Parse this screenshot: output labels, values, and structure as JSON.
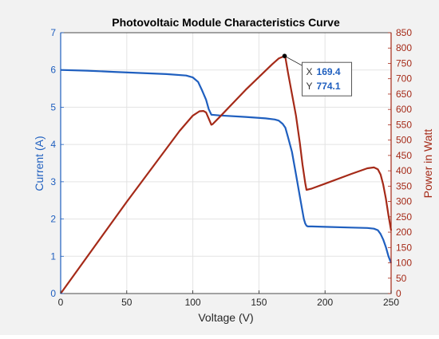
{
  "chart_data": {
    "type": "line",
    "title": "Photovoltaic Module Characteristics Curve",
    "xlabel": "Voltage (V)",
    "ylabel_left": "Current (A)",
    "ylabel_right": "Power in Watt",
    "xlim": [
      0,
      250
    ],
    "ylim_left": [
      0,
      7
    ],
    "ylim_right": [
      0,
      850
    ],
    "x_ticks": [
      "0",
      "50",
      "100",
      "150",
      "200",
      "250"
    ],
    "y_left_ticks": [
      "0",
      "1",
      "2",
      "3",
      "4",
      "5",
      "6",
      "7"
    ],
    "y_right_ticks": [
      "0",
      "50",
      "100",
      "150",
      "200",
      "250",
      "300",
      "350",
      "400",
      "450",
      "500",
      "550",
      "600",
      "650",
      "700",
      "750",
      "800",
      "850"
    ],
    "grid": true,
    "colors": {
      "current": "#1f5fbf",
      "power": "#a52a18",
      "datatip_value": "#1f5fbf"
    },
    "series": [
      {
        "axis": "left",
        "x": [
          0,
          20,
          40,
          60,
          80,
          95,
          100,
          104,
          107,
          110,
          112,
          114,
          120,
          140,
          155,
          162,
          165,
          168,
          170,
          172,
          175,
          178,
          181,
          183,
          184,
          185,
          186,
          187,
          190,
          200,
          220,
          232,
          237,
          240,
          242,
          244,
          246,
          248,
          250
        ],
        "y": [
          6.0,
          5.98,
          5.95,
          5.92,
          5.89,
          5.85,
          5.8,
          5.68,
          5.45,
          5.2,
          4.95,
          4.8,
          4.78,
          4.74,
          4.7,
          4.67,
          4.64,
          4.55,
          4.45,
          4.2,
          3.8,
          3.2,
          2.6,
          2.2,
          2.0,
          1.88,
          1.82,
          1.8,
          1.8,
          1.79,
          1.77,
          1.76,
          1.74,
          1.7,
          1.6,
          1.45,
          1.25,
          1.0,
          0.82
        ]
      },
      {
        "axis": "right",
        "x": [
          0,
          50,
          90,
          100,
          105,
          108,
          110,
          112,
          114,
          115,
          120,
          140,
          160,
          165,
          169.4,
          170,
          172,
          175,
          178,
          181,
          183,
          185,
          186,
          190,
          200,
          220,
          232,
          237,
          240,
          242,
          244,
          246,
          248,
          250
        ],
        "y": [
          0,
          299,
          530,
          580,
          594,
          595,
          590,
          570,
          550,
          552,
          574,
          664,
          747,
          766,
          774.1,
          770,
          720,
          650,
          580,
          490,
          420,
          360,
          338,
          342,
          358,
          390,
          408,
          411,
          405,
          388,
          355,
          310,
          255,
          205
        ]
      }
    ],
    "annotation": {
      "x_label": "X",
      "x_value": "169.4",
      "y_label": "Y",
      "y_value": "774.1",
      "point": [
        169.4,
        774.1
      ]
    }
  }
}
